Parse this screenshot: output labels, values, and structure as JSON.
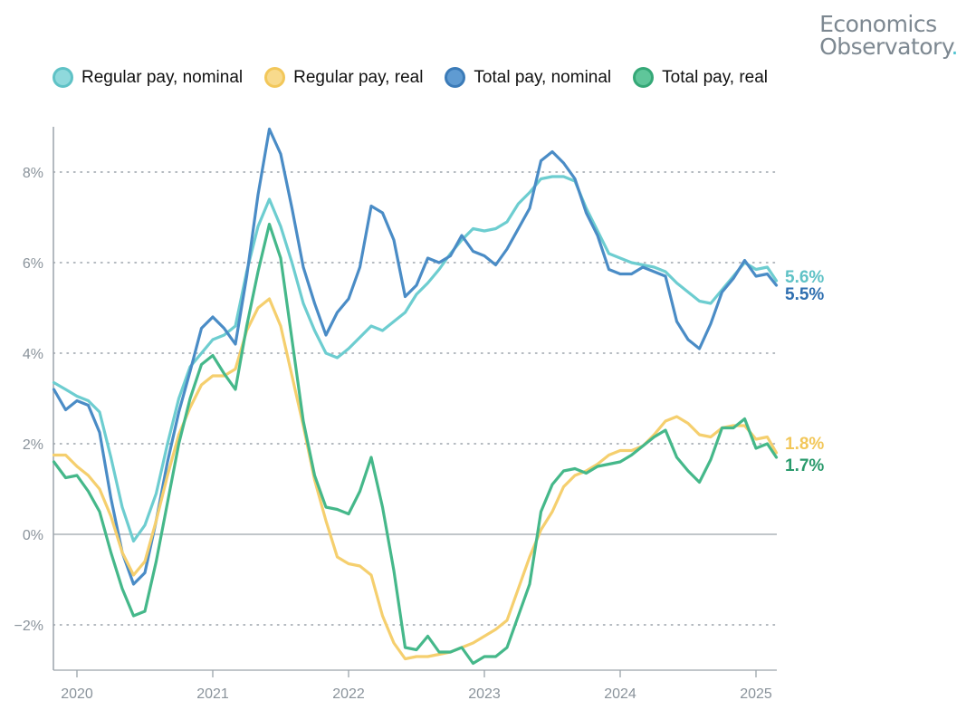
{
  "brand": {
    "line1": "Economics",
    "line2": "Observatory",
    "dot": "."
  },
  "colors": {
    "regular_nominal": "#6dcdd0",
    "regular_real": "#f5cf6e",
    "total_nominal": "#4a8cc6",
    "total_real": "#45b88a",
    "axis": "#9ca3ab",
    "grid": "#9ca3ab"
  },
  "chart_data": {
    "type": "line",
    "x_unit": "year",
    "xlim": [
      2019.83,
      2025.17
    ],
    "ylim": [
      -3.0,
      9.0
    ],
    "y_ticks": [
      -2,
      0,
      2,
      4,
      6,
      8
    ],
    "y_tick_labels": [
      "−2%",
      "0%",
      "2%",
      "4%",
      "6%",
      "8%"
    ],
    "x_ticks": [
      2020,
      2021,
      2022,
      2023,
      2024,
      2025
    ],
    "x_tick_labels": [
      "2020",
      "2021",
      "2022",
      "2023",
      "2024",
      "2025"
    ],
    "grid": "horizontal dotted",
    "legend_position": "top",
    "series": [
      {
        "name": "Regular pay, nominal",
        "color": "#6dcdd0",
        "end_label": "5.6%",
        "x": [
          2019.83,
          2019.917,
          2020.0,
          2020.083,
          2020.167,
          2020.25,
          2020.333,
          2020.417,
          2020.5,
          2020.583,
          2020.667,
          2020.75,
          2020.833,
          2020.917,
          2021.0,
          2021.083,
          2021.167,
          2021.25,
          2021.333,
          2021.417,
          2021.5,
          2021.583,
          2021.667,
          2021.75,
          2021.833,
          2021.917,
          2022.0,
          2022.083,
          2022.167,
          2022.25,
          2022.333,
          2022.417,
          2022.5,
          2022.583,
          2022.667,
          2022.75,
          2022.833,
          2022.917,
          2023.0,
          2023.083,
          2023.167,
          2023.25,
          2023.333,
          2023.417,
          2023.5,
          2023.583,
          2023.667,
          2023.75,
          2023.833,
          2023.917,
          2024.0,
          2024.083,
          2024.167,
          2024.25,
          2024.333,
          2024.417,
          2024.5,
          2024.583,
          2024.667,
          2024.75,
          2024.833,
          2024.917,
          2025.0,
          2025.083,
          2025.15
        ],
        "values": [
          3.35,
          3.2,
          3.05,
          2.95,
          2.7,
          1.7,
          0.6,
          -0.15,
          0.2,
          0.9,
          2.0,
          3.0,
          3.7,
          4.0,
          4.3,
          4.4,
          4.6,
          5.8,
          6.8,
          7.4,
          6.8,
          6.0,
          5.1,
          4.5,
          4.0,
          3.9,
          4.1,
          4.35,
          4.6,
          4.5,
          4.7,
          4.9,
          5.3,
          5.55,
          5.85,
          6.2,
          6.5,
          6.75,
          6.7,
          6.75,
          6.9,
          7.3,
          7.55,
          7.85,
          7.9,
          7.9,
          7.8,
          7.2,
          6.7,
          6.2,
          6.1,
          6.0,
          5.95,
          5.9,
          5.8,
          5.55,
          5.35,
          5.15,
          5.1,
          5.4,
          5.7,
          6.0,
          5.85,
          5.9,
          5.6
        ]
      },
      {
        "name": "Regular pay, real",
        "color": "#f5cf6e",
        "end_label": "1.8%",
        "x": [
          2019.83,
          2019.917,
          2020.0,
          2020.083,
          2020.167,
          2020.25,
          2020.333,
          2020.417,
          2020.5,
          2020.583,
          2020.667,
          2020.75,
          2020.833,
          2020.917,
          2021.0,
          2021.083,
          2021.167,
          2021.25,
          2021.333,
          2021.417,
          2021.5,
          2021.583,
          2021.667,
          2021.75,
          2021.833,
          2021.917,
          2022.0,
          2022.083,
          2022.167,
          2022.25,
          2022.333,
          2022.417,
          2022.5,
          2022.583,
          2022.667,
          2022.75,
          2022.833,
          2022.917,
          2023.0,
          2023.083,
          2023.167,
          2023.25,
          2023.333,
          2023.417,
          2023.5,
          2023.583,
          2023.667,
          2023.75,
          2023.833,
          2023.917,
          2024.0,
          2024.083,
          2024.167,
          2024.25,
          2024.333,
          2024.417,
          2024.5,
          2024.583,
          2024.667,
          2024.75,
          2024.833,
          2024.917,
          2025.0,
          2025.083,
          2025.15
        ],
        "values": [
          1.75,
          1.75,
          1.5,
          1.3,
          1.0,
          0.4,
          -0.4,
          -0.9,
          -0.6,
          0.3,
          1.3,
          2.2,
          2.8,
          3.3,
          3.5,
          3.5,
          3.65,
          4.5,
          5.0,
          5.2,
          4.6,
          3.5,
          2.4,
          1.2,
          0.3,
          -0.5,
          -0.65,
          -0.7,
          -0.9,
          -1.8,
          -2.4,
          -2.75,
          -2.7,
          -2.7,
          -2.65,
          -2.6,
          -2.5,
          -2.4,
          -2.25,
          -2.1,
          -1.9,
          -1.2,
          -0.5,
          0.1,
          0.5,
          1.05,
          1.3,
          1.4,
          1.55,
          1.75,
          1.85,
          1.85,
          1.95,
          2.2,
          2.5,
          2.6,
          2.45,
          2.2,
          2.15,
          2.35,
          2.4,
          2.4,
          2.1,
          2.15,
          1.8
        ]
      },
      {
        "name": "Total pay, nominal",
        "color": "#4a8cc6",
        "end_label": "5.5%",
        "x": [
          2019.83,
          2019.917,
          2020.0,
          2020.083,
          2020.167,
          2020.25,
          2020.333,
          2020.417,
          2020.5,
          2020.583,
          2020.667,
          2020.75,
          2020.833,
          2020.917,
          2021.0,
          2021.083,
          2021.167,
          2021.25,
          2021.333,
          2021.417,
          2021.5,
          2021.583,
          2021.667,
          2021.75,
          2021.833,
          2021.917,
          2022.0,
          2022.083,
          2022.167,
          2022.25,
          2022.333,
          2022.417,
          2022.5,
          2022.583,
          2022.667,
          2022.75,
          2022.833,
          2022.917,
          2023.0,
          2023.083,
          2023.167,
          2023.25,
          2023.333,
          2023.417,
          2023.5,
          2023.583,
          2023.667,
          2023.75,
          2023.833,
          2023.917,
          2024.0,
          2024.083,
          2024.167,
          2024.25,
          2024.333,
          2024.417,
          2024.5,
          2024.583,
          2024.667,
          2024.75,
          2024.833,
          2024.917,
          2025.0,
          2025.083,
          2025.15
        ],
        "values": [
          3.2,
          2.75,
          2.95,
          2.85,
          2.25,
          0.8,
          -0.4,
          -1.1,
          -0.85,
          0.3,
          1.6,
          2.7,
          3.6,
          4.55,
          4.8,
          4.55,
          4.2,
          5.7,
          7.5,
          8.95,
          8.4,
          7.2,
          5.9,
          5.1,
          4.4,
          4.9,
          5.2,
          5.9,
          7.25,
          7.1,
          6.5,
          5.25,
          5.5,
          6.1,
          6.0,
          6.15,
          6.6,
          6.25,
          6.15,
          5.95,
          6.3,
          6.75,
          7.2,
          8.25,
          8.45,
          8.2,
          7.85,
          7.1,
          6.6,
          5.85,
          5.75,
          5.75,
          5.9,
          5.8,
          5.7,
          4.7,
          4.3,
          4.1,
          4.65,
          5.35,
          5.65,
          6.05,
          5.7,
          5.75,
          5.5
        ]
      },
      {
        "name": "Total pay, real",
        "color": "#45b88a",
        "end_label": "1.7%",
        "x": [
          2019.83,
          2019.917,
          2020.0,
          2020.083,
          2020.167,
          2020.25,
          2020.333,
          2020.417,
          2020.5,
          2020.583,
          2020.667,
          2020.75,
          2020.833,
          2020.917,
          2021.0,
          2021.083,
          2021.167,
          2021.25,
          2021.333,
          2021.417,
          2021.5,
          2021.583,
          2021.667,
          2021.75,
          2021.833,
          2021.917,
          2022.0,
          2022.083,
          2022.167,
          2022.25,
          2022.333,
          2022.417,
          2022.5,
          2022.583,
          2022.667,
          2022.75,
          2022.833,
          2022.917,
          2023.0,
          2023.083,
          2023.167,
          2023.25,
          2023.333,
          2023.417,
          2023.5,
          2023.583,
          2023.667,
          2023.75,
          2023.833,
          2023.917,
          2024.0,
          2024.083,
          2024.167,
          2024.25,
          2024.333,
          2024.417,
          2024.5,
          2024.583,
          2024.667,
          2024.75,
          2024.833,
          2024.917,
          2025.0,
          2025.083,
          2025.15
        ],
        "values": [
          1.6,
          1.25,
          1.3,
          0.95,
          0.5,
          -0.4,
          -1.2,
          -1.8,
          -1.7,
          -0.6,
          0.7,
          2.0,
          3.0,
          3.75,
          3.95,
          3.55,
          3.2,
          4.6,
          5.8,
          6.85,
          6.1,
          4.3,
          2.5,
          1.3,
          0.6,
          0.55,
          0.45,
          0.95,
          1.7,
          0.6,
          -0.8,
          -2.5,
          -2.55,
          -2.25,
          -2.6,
          -2.6,
          -2.5,
          -2.85,
          -2.7,
          -2.7,
          -2.5,
          -1.8,
          -1.1,
          0.5,
          1.1,
          1.4,
          1.45,
          1.35,
          1.5,
          1.55,
          1.6,
          1.75,
          1.95,
          2.15,
          2.3,
          1.7,
          1.4,
          1.15,
          1.65,
          2.35,
          2.35,
          2.55,
          1.9,
          2.0,
          1.7
        ]
      }
    ]
  }
}
